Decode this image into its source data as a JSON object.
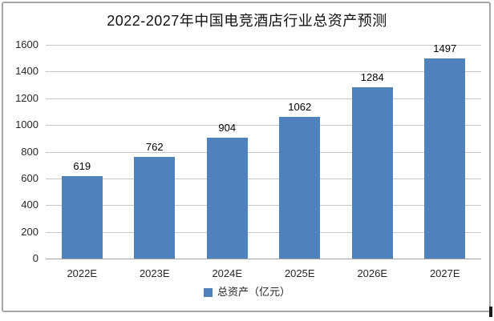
{
  "frame": {
    "border_color": "#A6A6A6"
  },
  "chart_data": {
    "type": "bar",
    "title": "2022-2027年中国电竞酒店行业总资产预测",
    "categories": [
      "2022E",
      "2023E",
      "2024E",
      "2025E",
      "2026E",
      "2027E"
    ],
    "values": [
      619,
      762,
      904,
      1062,
      1284,
      1497
    ],
    "series_name": "总资产（亿元）",
    "xlabel": "",
    "ylabel": "",
    "y_ticks": [
      0,
      200,
      400,
      600,
      800,
      1000,
      1200,
      1400,
      1600
    ],
    "ylim": [
      0,
      1600
    ],
    "grid": true,
    "data_labels": true,
    "bar_color": "#4F81BD",
    "gridline_color": "#C8C8C8",
    "axis_line_color": "#A3A3A3",
    "legend": {
      "label": "总资产（亿元）",
      "marker_color": "#4F81BD",
      "position": "bottom"
    }
  }
}
